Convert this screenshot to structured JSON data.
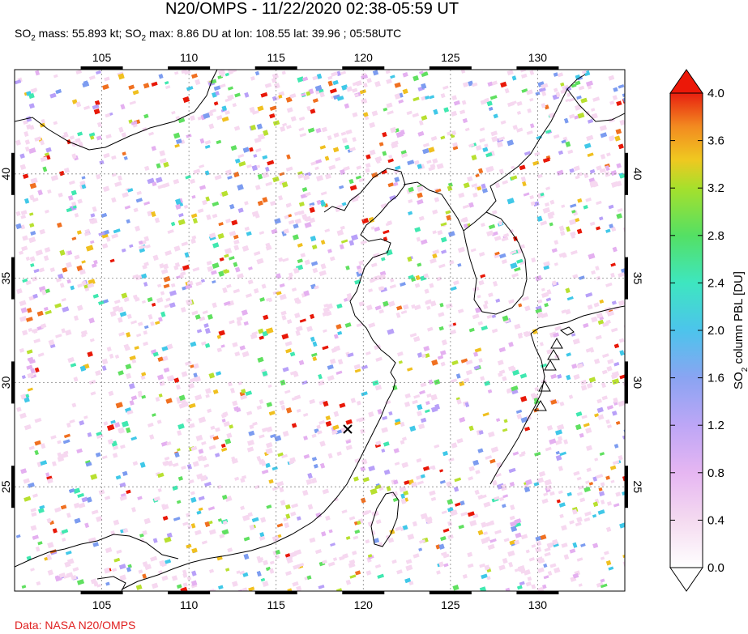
{
  "title": "N20/OMPS - 11/22/2020 02:38-05:59 UT",
  "subtitle": {
    "p1": "SO",
    "sub1": "2",
    "p2": " mass: 55.893 kt; SO",
    "sub2": "2",
    "p3": " max: 8.86 DU at lon: 108.55 lat: 39.96 ; 05:58UTC"
  },
  "source": "Data: NASA N20/OMPS",
  "map": {
    "lon_range": [
      100,
      135
    ],
    "lat_range": [
      20,
      45
    ],
    "lon_ticks": [
      "105",
      "110",
      "115",
      "120",
      "125",
      "130"
    ],
    "lat_ticks": [
      "25",
      "30",
      "35",
      "40"
    ],
    "volcano_markers": 5,
    "cross_markers": 1
  },
  "colorbar": {
    "label_main": "SO",
    "label_sub": "2",
    "label_rest": " column PBL [DU]",
    "ticks": [
      "0.0",
      "0.4",
      "0.8",
      "1.2",
      "1.6",
      "2.0",
      "2.4",
      "2.8",
      "3.2",
      "3.6",
      "4.0"
    ],
    "colors": [
      "#ffffff",
      "#f6d8f0",
      "#e4b0f0",
      "#b8a0f8",
      "#7c9cf0",
      "#40c8e8",
      "#40e8b0",
      "#60e060",
      "#b8e030",
      "#f0c020",
      "#f07020",
      "#e81808"
    ]
  }
}
